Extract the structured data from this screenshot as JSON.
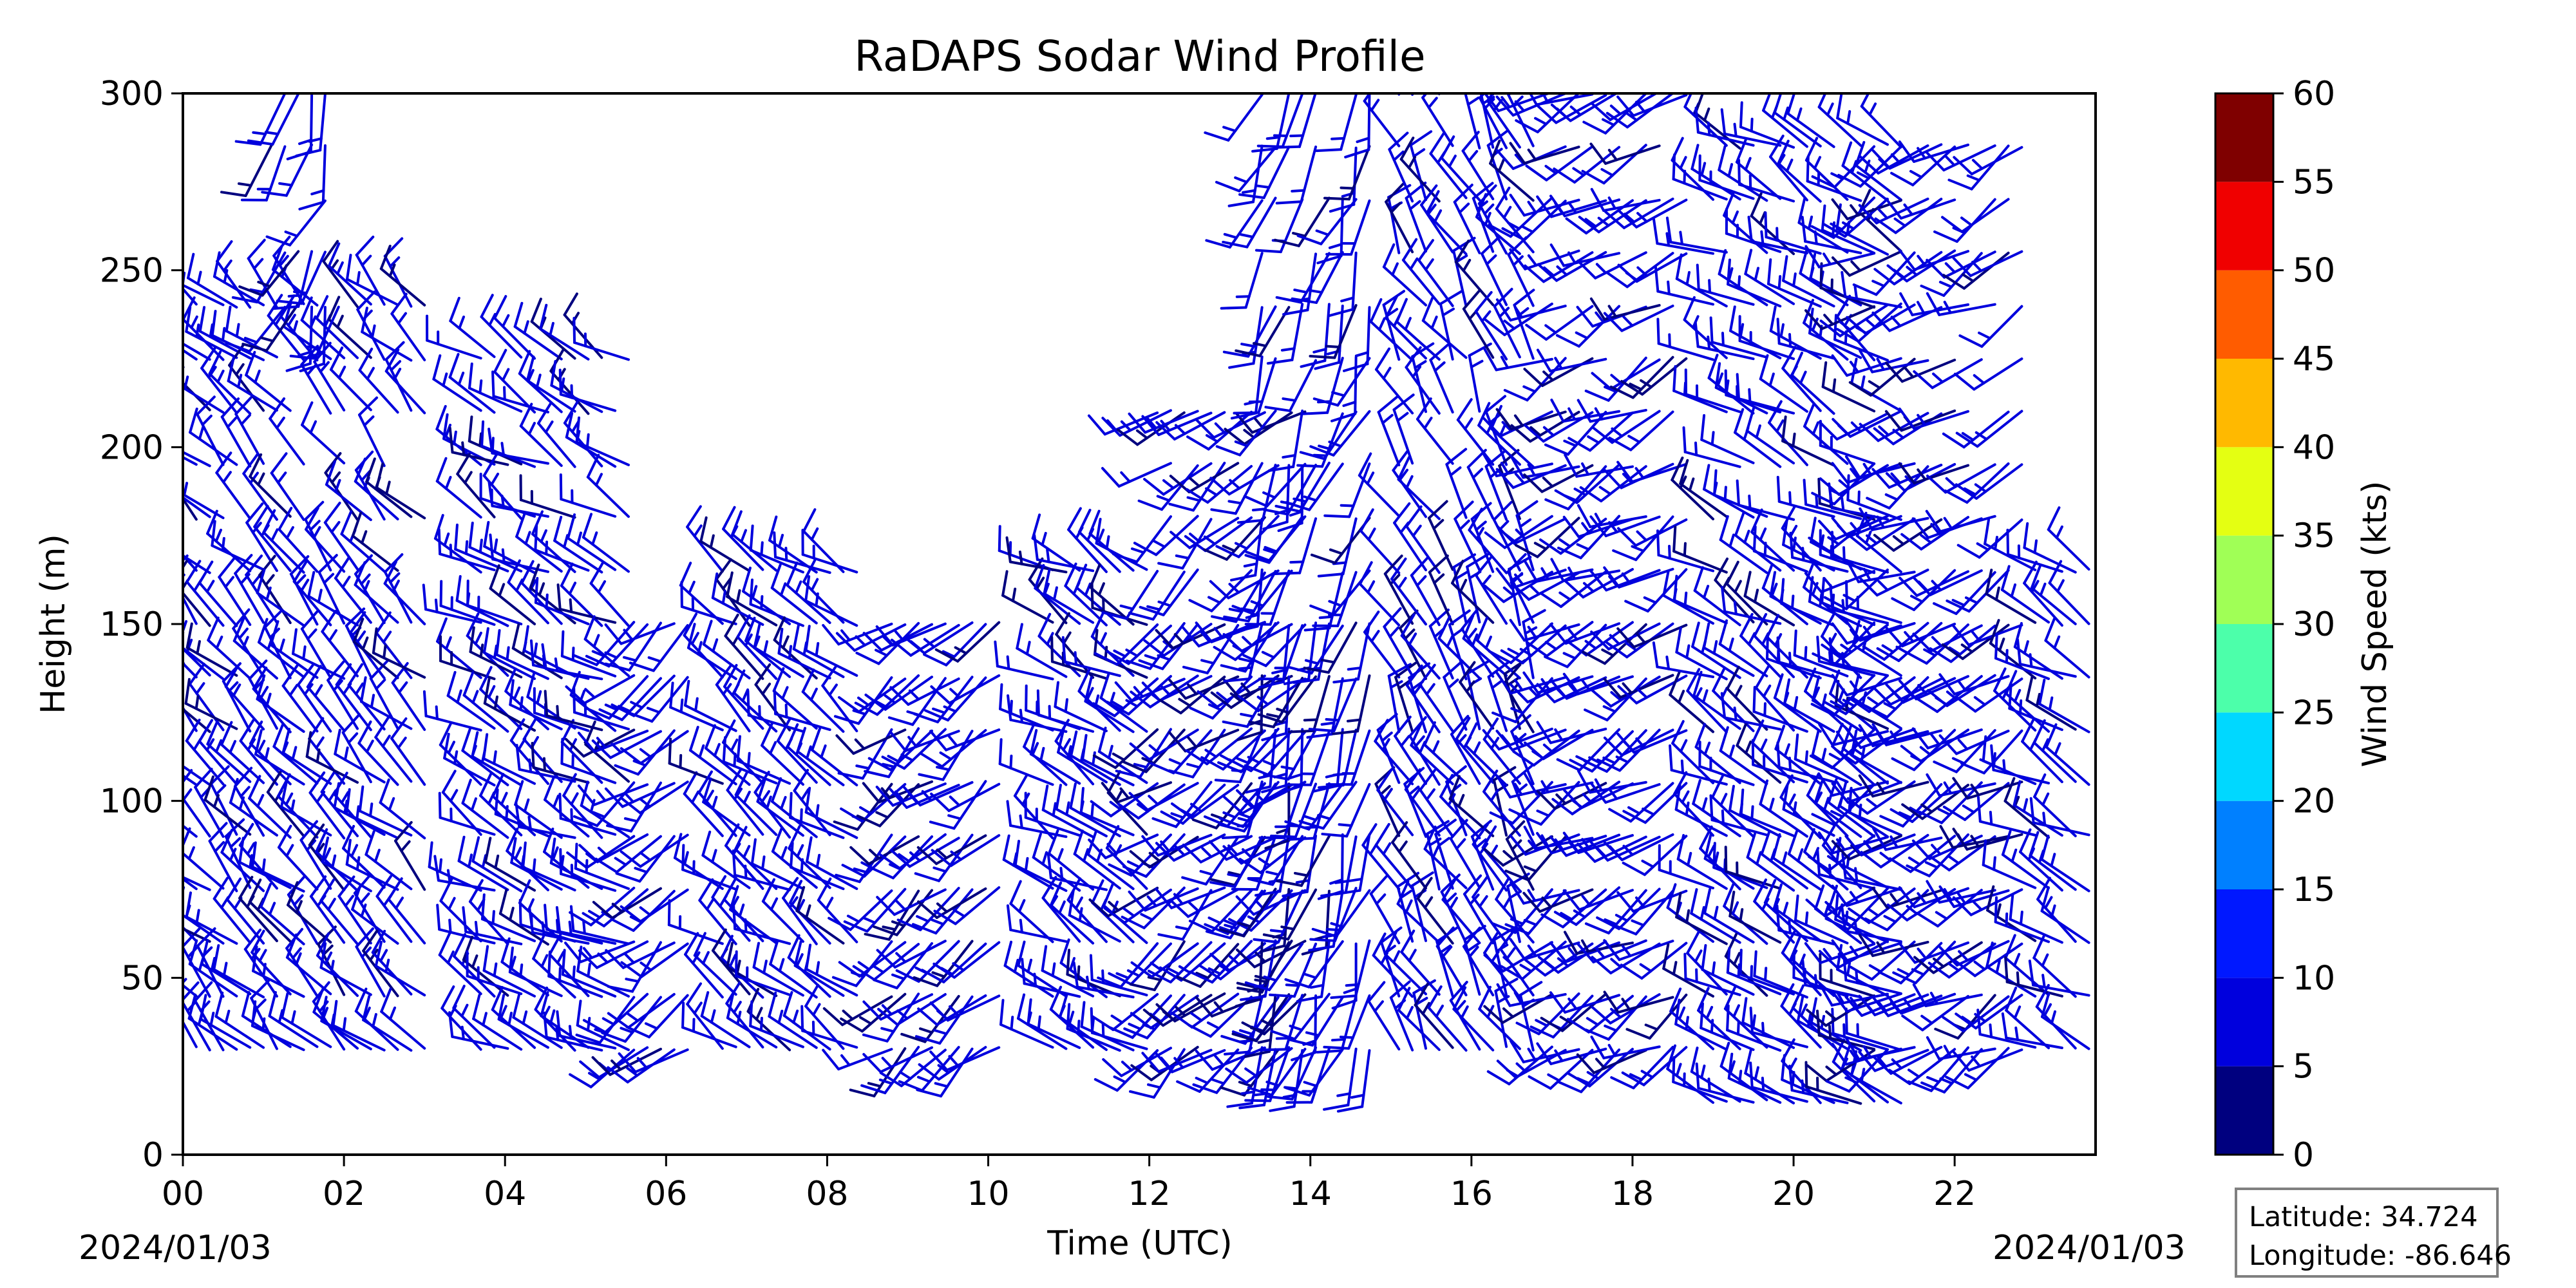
{
  "chart_data": {
    "type": "wind_barb_profile",
    "title": "RaDAPS Sodar Wind Profile",
    "xlabel": "Time (UTC)",
    "ylabel": "Height (m)",
    "xlim": [
      0,
      23.75
    ],
    "ylim": [
      0,
      300
    ],
    "x_ticks": [
      "00",
      "02",
      "04",
      "06",
      "08",
      "10",
      "12",
      "14",
      "16",
      "18",
      "20",
      "22"
    ],
    "x_tick_values": [
      0,
      2,
      4,
      6,
      8,
      10,
      12,
      14,
      16,
      18,
      20,
      22
    ],
    "y_ticks": [
      0,
      50,
      100,
      150,
      200,
      250,
      300
    ],
    "date_start": "2024/01/03",
    "date_end": "2024/01/03",
    "colorbar": {
      "label": "Wind Speed (kts)",
      "ticks": [
        0,
        5,
        10,
        15,
        20,
        25,
        30,
        35,
        40,
        45,
        50,
        55,
        60
      ],
      "colors": [
        "#00007f",
        "#0000dd",
        "#0018ff",
        "#0080ff",
        "#00d8ff",
        "#4cffaa",
        "#a0ff56",
        "#e4ff12",
        "#ffb900",
        "#ff5c00",
        "#f00000",
        "#7f0000"
      ]
    },
    "barb_color": "#0000dd",
    "barb_color_light": "#00007f",
    "segments": [
      {
        "t_start": 0.0,
        "t_end": 3.1,
        "h_min": 25,
        "h_max": 245,
        "speed_kts": 8,
        "direction_deg": 315
      },
      {
        "t_start": 1.1,
        "t_end": 2.0,
        "h_min": 230,
        "h_max": 300,
        "speed_kts": 8,
        "direction_deg": 200
      },
      {
        "t_start": 3.7,
        "t_end": 5.6,
        "h_min": 18,
        "h_max": 225,
        "speed_kts": 9,
        "direction_deg": 300
      },
      {
        "t_start": 5.6,
        "t_end": 6.4,
        "h_min": 18,
        "h_max": 160,
        "speed_kts": 6,
        "direction_deg": 230
      },
      {
        "t_start": 6.7,
        "t_end": 8.4,
        "h_min": 18,
        "h_max": 170,
        "speed_kts": 8,
        "direction_deg": 305
      },
      {
        "t_start": 8.8,
        "t_end": 10.3,
        "h_min": 18,
        "h_max": 160,
        "speed_kts": 7,
        "direction_deg": 230
      },
      {
        "t_start": 10.8,
        "t_end": 12.0,
        "h_min": 18,
        "h_max": 175,
        "speed_kts": 8,
        "direction_deg": 300
      },
      {
        "t_start": 12.1,
        "t_end": 14.0,
        "h_min": 18,
        "h_max": 215,
        "speed_kts": 8,
        "direction_deg": 230
      },
      {
        "t_start": 13.4,
        "t_end": 14.9,
        "h_min": 18,
        "h_max": 300,
        "speed_kts": 8,
        "direction_deg": 200
      },
      {
        "t_start": 15.1,
        "t_end": 16.8,
        "h_min": 18,
        "h_max": 300,
        "speed_kts": 8,
        "direction_deg": 330
      },
      {
        "t_start": 17.0,
        "t_end": 18.7,
        "h_min": 18,
        "h_max": 300,
        "speed_kts": 9,
        "direction_deg": 240
      },
      {
        "t_start": 19.0,
        "t_end": 21.5,
        "h_min": 15,
        "h_max": 295,
        "speed_kts": 9,
        "direction_deg": 300
      },
      {
        "t_start": 21.0,
        "t_end": 23.0,
        "h_min": 18,
        "h_max": 295,
        "speed_kts": 8,
        "direction_deg": 240
      },
      {
        "t_start": 23.0,
        "t_end": 23.75,
        "h_min": 25,
        "h_max": 170,
        "speed_kts": 7,
        "direction_deg": 300
      }
    ]
  },
  "info_box": {
    "latitude": "Latitude: 34.724",
    "longitude": "Longitude: -86.646"
  }
}
